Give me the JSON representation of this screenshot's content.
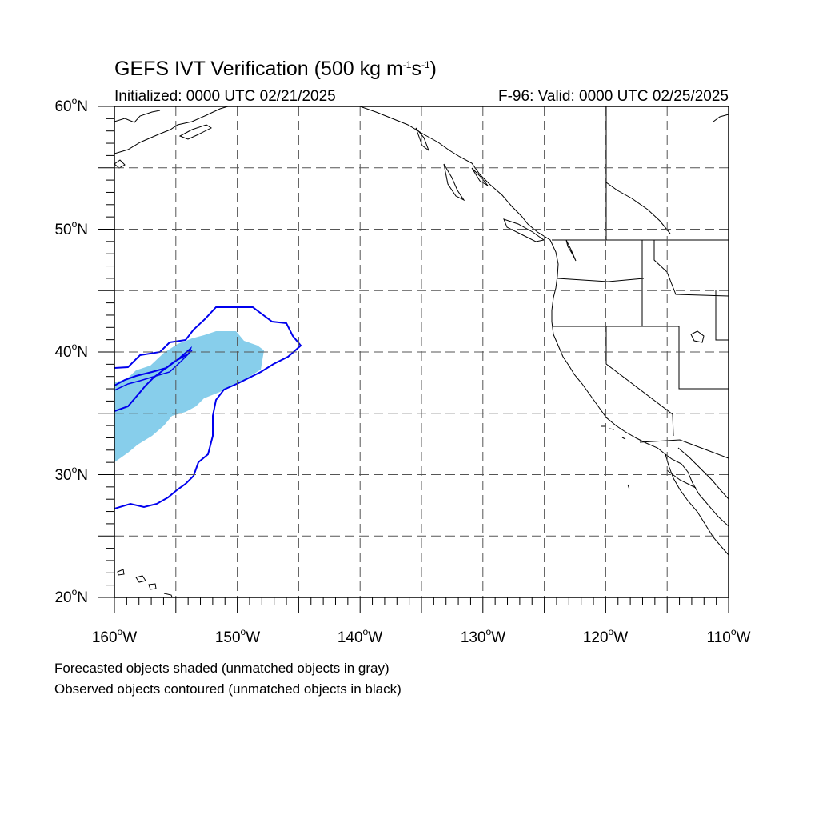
{
  "title": {
    "main": "GEFS IVT Verification (500 kg m",
    "exp1": "-1",
    "mid": "s",
    "exp2": "-1",
    "close": ")"
  },
  "subtitle": {
    "initialized": "Initialized: 0000 UTC 02/21/2025",
    "valid": "F-96: Valid: 0000 UTC 02/25/2025"
  },
  "map": {
    "lon_range": [
      -160,
      -110
    ],
    "lat_range": [
      20,
      60
    ],
    "lat_labels": [
      {
        "value": 60,
        "deg": "60",
        "hemi": "N"
      },
      {
        "value": 50,
        "deg": "50",
        "hemi": "N"
      },
      {
        "value": 40,
        "deg": "40",
        "hemi": "N"
      },
      {
        "value": 30,
        "deg": "30",
        "hemi": "N"
      },
      {
        "value": 20,
        "deg": "20",
        "hemi": "N"
      }
    ],
    "lon_labels": [
      {
        "value": -160,
        "deg": "160",
        "hemi": "W"
      },
      {
        "value": -150,
        "deg": "150",
        "hemi": "W"
      },
      {
        "value": -140,
        "deg": "140",
        "hemi": "W"
      },
      {
        "value": -130,
        "deg": "130",
        "hemi": "W"
      },
      {
        "value": -120,
        "deg": "120",
        "hemi": "W"
      },
      {
        "value": -110,
        "deg": "110",
        "hemi": "W"
      }
    ],
    "grid": "dashed, every 5 degrees",
    "colors": {
      "forecast_fill": "#87CEEB",
      "observed_contour": "#0000ee",
      "coast": "#000000",
      "grid": "#555555"
    }
  },
  "footnotes": {
    "forecast": "Forecasted objects shaded (unmatched objects in gray)",
    "observed": "Observed objects contoured (unmatched objects in black)"
  }
}
